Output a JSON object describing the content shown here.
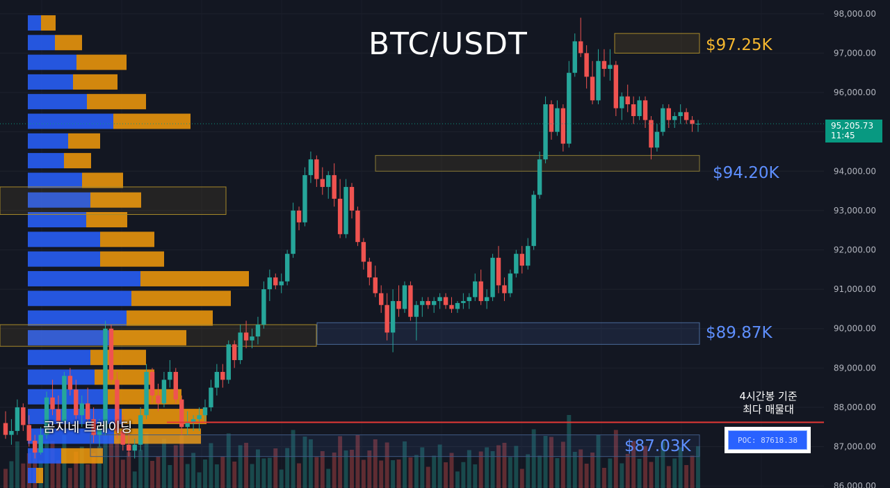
{
  "title": "BTC/USDT",
  "levels": [
    {
      "label": "$97.25K",
      "color": "#f5b72f"
    },
    {
      "label": "$94.20K",
      "color": "#5e8fff"
    },
    {
      "label": "$89.87K",
      "color": "#5e8fff"
    },
    {
      "label": "$87.03K",
      "color": "#5e8fff"
    }
  ],
  "watermark": "곰지네 트레이딩",
  "annotation": {
    "line1": "4시간봉 기준",
    "line2": "최다 매물대"
  },
  "poc": {
    "label": "POC: 87618.38",
    "price": 87618.38,
    "line_color": "#e53935"
  },
  "last_price": {
    "price": "95,205.73",
    "countdown": "11:45",
    "value": 95205.73,
    "color": "#089981"
  },
  "colors": {
    "background": "#131722",
    "up": "#26a69a",
    "down": "#ef5350",
    "profile_buy": "#2962ff",
    "profile_sell": "#f59b0b",
    "axis_text": "#b2b5be"
  },
  "chart_data": {
    "type": "candlestick",
    "y_axis": {
      "ticks": [
        "98,000.00",
        "97,000.00",
        "96,000.00",
        "95,000.00",
        "94,000.00",
        "93,000.00",
        "92,000.00",
        "91,000.00",
        "90,000.00",
        "89,000.00",
        "88,000.00",
        "87,000.00",
        "86,000.00"
      ],
      "range": [
        85950,
        98350
      ],
      "position": "right"
    },
    "zones": [
      {
        "label": "$97.25K",
        "low": 97000,
        "high": 97500,
        "color": "yellow"
      },
      {
        "label": "$94.20K",
        "low": 94000,
        "high": 94400,
        "color": "yellow-blue"
      },
      {
        "label": "$89.87K",
        "low": 89600,
        "high": 90150,
        "color": "blue"
      },
      {
        "label": "$87.03K",
        "low": 86750,
        "high": 87300,
        "color": "blue"
      }
    ],
    "volume_profile": {
      "rows": [
        {
          "price": 97750,
          "buy": 19,
          "sell": 21
        },
        {
          "price": 97250,
          "buy": 39,
          "sell": 39
        },
        {
          "price": 96750,
          "buy": 70,
          "sell": 72
        },
        {
          "price": 96250,
          "buy": 65,
          "sell": 64
        },
        {
          "price": 95750,
          "buy": 85,
          "sell": 85
        },
        {
          "price": 95250,
          "buy": 123,
          "sell": 111
        },
        {
          "price": 94750,
          "buy": 58,
          "sell": 46
        },
        {
          "price": 94250,
          "buy": 52,
          "sell": 39
        },
        {
          "price": 93750,
          "buy": 78,
          "sell": 59
        },
        {
          "price": 93250,
          "buy": 90,
          "sell": 73
        },
        {
          "price": 92750,
          "buy": 84,
          "sell": 59
        },
        {
          "price": 92250,
          "buy": 104,
          "sell": 78
        },
        {
          "price": 91750,
          "buy": 104,
          "sell": 92
        },
        {
          "price": 91250,
          "buy": 162,
          "sell": 156
        },
        {
          "price": 90750,
          "buy": 149,
          "sell": 143
        },
        {
          "price": 90250,
          "buy": 142,
          "sell": 124
        },
        {
          "price": 89750,
          "buy": 117,
          "sell": 111
        },
        {
          "price": 89250,
          "buy": 90,
          "sell": 80
        },
        {
          "price": 88750,
          "buy": 96,
          "sell": 86
        },
        {
          "price": 88250,
          "buy": 115,
          "sell": 106
        },
        {
          "price": 87750,
          "buy": 135,
          "sell": 122
        },
        {
          "price": 87250,
          "buy": 124,
          "sell": 125
        },
        {
          "price": 86750,
          "buy": 48,
          "sell": 60
        },
        {
          "price": 86250,
          "buy": 12,
          "sell": 10
        }
      ]
    },
    "candles": [
      [
        87600,
        87900,
        87200,
        87300
      ],
      [
        87300,
        87700,
        87050,
        87400
      ],
      [
        87400,
        88200,
        87300,
        88000
      ],
      [
        88000,
        88100,
        87400,
        87550
      ],
      [
        87550,
        87800,
        87000,
        87150
      ],
      [
        87150,
        87300,
        86700,
        86850
      ],
      [
        86850,
        87500,
        86800,
        87300
      ],
      [
        87300,
        88400,
        87200,
        88250
      ],
      [
        88250,
        88700,
        87800,
        87950
      ],
      [
        87950,
        88300,
        87400,
        87650
      ],
      [
        87650,
        88900,
        87600,
        88800
      ],
      [
        88800,
        89000,
        88300,
        88450
      ],
      [
        88450,
        88700,
        87700,
        87800
      ],
      [
        87800,
        88300,
        87500,
        88100
      ],
      [
        88100,
        88500,
        87600,
        87700
      ],
      [
        87700,
        88000,
        87100,
        87300
      ],
      [
        87300,
        87700,
        87000,
        87450
      ],
      [
        87450,
        90200,
        87300,
        90000
      ],
      [
        90000,
        90100,
        88600,
        88700
      ],
      [
        88700,
        88900,
        87200,
        87400
      ],
      [
        87400,
        87800,
        86900,
        87050
      ],
      [
        87050,
        87400,
        86750,
        86900
      ],
      [
        86900,
        87200,
        86700,
        87050
      ],
      [
        87050,
        88000,
        86900,
        87800
      ],
      [
        87800,
        89100,
        87700,
        88900
      ],
      [
        88900,
        89000,
        88100,
        88300
      ],
      [
        88300,
        88600,
        87900,
        88100
      ],
      [
        88100,
        88900,
        88000,
        88700
      ],
      [
        88700,
        89200,
        88500,
        88900
      ],
      [
        88900,
        89000,
        88100,
        88200
      ],
      [
        88200,
        88300,
        87300,
        87500
      ],
      [
        87500,
        87900,
        87300,
        87600
      ],
      [
        87600,
        87800,
        87400,
        87700
      ],
      [
        87700,
        88000,
        87400,
        87800
      ],
      [
        87800,
        88200,
        87600,
        88000
      ],
      [
        88000,
        88700,
        87900,
        88500
      ],
      [
        88500,
        89100,
        88300,
        88900
      ],
      [
        88900,
        89100,
        88500,
        88700
      ],
      [
        88700,
        89700,
        88600,
        89600
      ],
      [
        89600,
        89700,
        89000,
        89200
      ],
      [
        89200,
        90100,
        89100,
        89900
      ],
      [
        89900,
        90200,
        89500,
        89700
      ],
      [
        89700,
        90000,
        89500,
        89800
      ],
      [
        89800,
        90300,
        89600,
        90100
      ],
      [
        90100,
        91200,
        90000,
        91000
      ],
      [
        91000,
        91500,
        90700,
        91300
      ],
      [
        91300,
        91400,
        91000,
        91100
      ],
      [
        91100,
        91400,
        90900,
        91200
      ],
      [
        91200,
        92000,
        91100,
        91900
      ],
      [
        91900,
        93200,
        91800,
        93000
      ],
      [
        93000,
        93100,
        92500,
        92700
      ],
      [
        92700,
        94100,
        92600,
        93900
      ],
      [
        93900,
        94500,
        93700,
        94300
      ],
      [
        94300,
        94400,
        93600,
        93800
      ],
      [
        93800,
        94100,
        93400,
        93600
      ],
      [
        93600,
        94000,
        93300,
        93900
      ],
      [
        93900,
        94200,
        93100,
        93300
      ],
      [
        93300,
        93800,
        92300,
        92400
      ],
      [
        92400,
        93800,
        92300,
        93600
      ],
      [
        93600,
        93700,
        92800,
        93000
      ],
      [
        93000,
        93100,
        92100,
        92200
      ],
      [
        92200,
        92300,
        91500,
        91700
      ],
      [
        91700,
        91800,
        91100,
        91300
      ],
      [
        91300,
        91600,
        90800,
        90900
      ],
      [
        90900,
        91100,
        90400,
        90600
      ],
      [
        90600,
        90900,
        89700,
        89900
      ],
      [
        89900,
        91000,
        89400,
        90700
      ],
      [
        90700,
        91100,
        90300,
        90500
      ],
      [
        90500,
        91200,
        90400,
        91100
      ],
      [
        91100,
        91200,
        90200,
        90300
      ],
      [
        90300,
        90700,
        89700,
        90600
      ],
      [
        90600,
        90800,
        90300,
        90700
      ],
      [
        90700,
        90800,
        90500,
        90600
      ],
      [
        90600,
        90800,
        90400,
        90700
      ],
      [
        90700,
        90900,
        90500,
        90800
      ],
      [
        90800,
        90900,
        90500,
        90600
      ],
      [
        90600,
        90800,
        90400,
        90500
      ],
      [
        90500,
        90700,
        90400,
        90650
      ],
      [
        90650,
        90900,
        90500,
        90700
      ],
      [
        90700,
        90900,
        90500,
        90800
      ],
      [
        90800,
        91400,
        90700,
        91200
      ],
      [
        91200,
        91500,
        90600,
        90700
      ],
      [
        90700,
        91000,
        90500,
        90800
      ],
      [
        90800,
        91900,
        90700,
        91800
      ],
      [
        91800,
        92100,
        90900,
        91100
      ],
      [
        91100,
        91300,
        90700,
        90900
      ],
      [
        90900,
        91500,
        90800,
        91400
      ],
      [
        91400,
        92000,
        91300,
        91900
      ],
      [
        91900,
        92100,
        91400,
        91600
      ],
      [
        91600,
        92300,
        91500,
        92100
      ],
      [
        92100,
        93500,
        92000,
        93400
      ],
      [
        93400,
        94500,
        93300,
        94300
      ],
      [
        94300,
        95900,
        94200,
        95700
      ],
      [
        95700,
        95800,
        94800,
        95000
      ],
      [
        95000,
        95800,
        94900,
        95600
      ],
      [
        95600,
        95700,
        94500,
        94700
      ],
      [
        94700,
        96800,
        94600,
        96500
      ],
      [
        96500,
        97500,
        96400,
        97300
      ],
      [
        97300,
        97900,
        96900,
        97000
      ],
      [
        97000,
        97200,
        96100,
        96400
      ],
      [
        96400,
        96800,
        95700,
        95800
      ],
      [
        95800,
        97100,
        95700,
        96800
      ],
      [
        96800,
        97100,
        96400,
        96600
      ],
      [
        96600,
        97100,
        96300,
        96700
      ],
      [
        96700,
        96800,
        95400,
        95600
      ],
      [
        95600,
        96000,
        95300,
        95900
      ],
      [
        95900,
        96200,
        95500,
        95700
      ],
      [
        95700,
        95900,
        95200,
        95400
      ],
      [
        95400,
        95900,
        95300,
        95800
      ],
      [
        95800,
        95900,
        95100,
        95300
      ],
      [
        95300,
        95400,
        94300,
        94600
      ],
      [
        94600,
        95200,
        94500,
        95000
      ],
      [
        95000,
        95700,
        94900,
        95600
      ],
      [
        95600,
        95700,
        95100,
        95300
      ],
      [
        95300,
        95500,
        95100,
        95400
      ],
      [
        95400,
        95700,
        95200,
        95500
      ],
      [
        95500,
        95600,
        95200,
        95300
      ],
      [
        95300,
        95400,
        95000,
        95200
      ],
      [
        95200,
        95300,
        95000,
        95205.73
      ]
    ]
  }
}
